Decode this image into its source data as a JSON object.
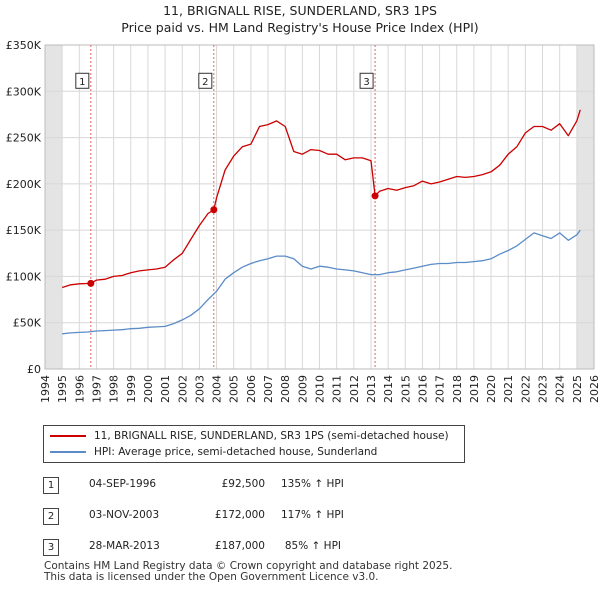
{
  "chart_data": {
    "type": "line",
    "title": "11, BRIGNALL RISE, SUNDERLAND, SR3 1PS",
    "subtitle": "Price paid vs. HM Land Registry's House Price Index (HPI)",
    "xlabel": "",
    "ylabel": "",
    "xlim": [
      1994,
      2026
    ],
    "ylim": [
      0,
      350000
    ],
    "y_ticks": [
      0,
      50000,
      100000,
      150000,
      200000,
      250000,
      300000,
      350000
    ],
    "y_tick_labels": [
      "£0",
      "£50K",
      "£100K",
      "£150K",
      "£200K",
      "£250K",
      "£300K",
      "£350K"
    ],
    "x_ticks": [
      1994,
      1995,
      1996,
      1997,
      1998,
      1999,
      2000,
      2001,
      2002,
      2003,
      2004,
      2005,
      2006,
      2007,
      2008,
      2009,
      2010,
      2011,
      2012,
      2013,
      2014,
      2015,
      2016,
      2017,
      2018,
      2019,
      2020,
      2021,
      2022,
      2023,
      2024,
      2025,
      2026
    ],
    "x_tick_labels": [
      "1994",
      "1995",
      "1996",
      "1997",
      "1998",
      "1999",
      "2000",
      "2001",
      "2002",
      "2003",
      "2004",
      "2005",
      "2006",
      "2007",
      "2008",
      "2009",
      "2010",
      "2011",
      "2012",
      "2013",
      "2014",
      "2015",
      "2016",
      "2017",
      "2018",
      "2019",
      "2020",
      "2021",
      "2022",
      "2023",
      "2024",
      "2025",
      "2026"
    ],
    "grid": true,
    "shaded_ranges": [
      [
        1994.0,
        1995.0
      ],
      [
        2025.0,
        2026.0
      ]
    ],
    "series": [
      {
        "name": "11, BRIGNALL RISE, SUNDERLAND, SR3 1PS (semi-detached house)",
        "color": "#cc0000",
        "x": [
          1995.0,
          1995.5,
          1996.0,
          1996.67,
          1997.0,
          1997.5,
          1998.0,
          1998.5,
          1999.0,
          1999.5,
          2000.0,
          2000.5,
          2001.0,
          2001.5,
          2002.0,
          2002.5,
          2003.0,
          2003.5,
          2003.84,
          2004.0,
          2004.5,
          2005.0,
          2005.5,
          2006.0,
          2006.5,
          2007.0,
          2007.5,
          2008.0,
          2008.5,
          2009.0,
          2009.5,
          2010.0,
          2010.5,
          2011.0,
          2011.5,
          2012.0,
          2012.5,
          2013.0,
          2013.24,
          2013.5,
          2014.0,
          2014.5,
          2015.0,
          2015.5,
          2016.0,
          2016.5,
          2017.0,
          2017.5,
          2018.0,
          2018.5,
          2019.0,
          2019.5,
          2020.0,
          2020.5,
          2021.0,
          2021.5,
          2022.0,
          2022.5,
          2023.0,
          2023.5,
          2024.0,
          2024.5,
          2025.0,
          2025.2
        ],
        "y": [
          88000,
          91000,
          92000,
          92500,
          96000,
          97000,
          100000,
          101000,
          104000,
          106000,
          107000,
          108000,
          110000,
          118000,
          125000,
          140000,
          155000,
          168000,
          172000,
          185000,
          215000,
          230000,
          240000,
          243000,
          262000,
          264000,
          268000,
          262000,
          235000,
          232000,
          237000,
          236000,
          232000,
          232000,
          226000,
          228000,
          228000,
          225000,
          187000,
          192000,
          195000,
          193000,
          196000,
          198000,
          203000,
          200000,
          202000,
          205000,
          208000,
          207000,
          208000,
          210000,
          213000,
          220000,
          232000,
          240000,
          255000,
          262000,
          262000,
          258000,
          265000,
          252000,
          268000,
          280000
        ]
      },
      {
        "name": "HPI: Average price, semi-detached house, Sunderland",
        "color": "#5b8cc8",
        "x": [
          1995.0,
          1995.5,
          1996.0,
          1996.5,
          1997.0,
          1997.5,
          1998.0,
          1998.5,
          1999.0,
          1999.5,
          2000.0,
          2000.5,
          2001.0,
          2001.5,
          2002.0,
          2002.5,
          2003.0,
          2003.5,
          2004.0,
          2004.5,
          2005.0,
          2005.5,
          2006.0,
          2006.5,
          2007.0,
          2007.5,
          2008.0,
          2008.5,
          2009.0,
          2009.5,
          2010.0,
          2010.5,
          2011.0,
          2011.5,
          2012.0,
          2012.5,
          2013.0,
          2013.5,
          2014.0,
          2014.5,
          2015.0,
          2015.5,
          2016.0,
          2016.5,
          2017.0,
          2017.5,
          2018.0,
          2018.5,
          2019.0,
          2019.5,
          2020.0,
          2020.5,
          2021.0,
          2021.5,
          2022.0,
          2022.5,
          2023.0,
          2023.5,
          2024.0,
          2024.5,
          2025.0,
          2025.2
        ],
        "y": [
          38000,
          39000,
          39500,
          40000,
          41000,
          41500,
          42000,
          42500,
          43500,
          44000,
          45000,
          45500,
          46000,
          49000,
          53000,
          58000,
          65000,
          75000,
          84000,
          97000,
          104000,
          110000,
          114000,
          117000,
          119000,
          122000,
          122000,
          119000,
          111000,
          108000,
          111000,
          110000,
          108000,
          107000,
          106000,
          104000,
          102000,
          102000,
          104000,
          105000,
          107000,
          109000,
          111000,
          113000,
          114000,
          114000,
          115000,
          115000,
          116000,
          117000,
          119000,
          124000,
          128000,
          133000,
          140000,
          147000,
          144000,
          141000,
          147000,
          139000,
          145000,
          150000
        ]
      }
    ],
    "annotations": [
      {
        "label": "1",
        "x": 1996.67,
        "y": 92500
      },
      {
        "label": "2",
        "x": 2003.84,
        "y": 172000
      },
      {
        "label": "3",
        "x": 2013.24,
        "y": 187000
      }
    ]
  },
  "legend": {
    "items": [
      {
        "label": "11, BRIGNALL RISE, SUNDERLAND, SR3 1PS (semi-detached house)",
        "color": "#cc0000"
      },
      {
        "label": "HPI: Average price, semi-detached house, Sunderland",
        "color": "#5b8cc8"
      }
    ]
  },
  "sales": [
    {
      "num": "1",
      "date": "04-SEP-1996",
      "price": "£92,500",
      "hpi": "135% ↑ HPI"
    },
    {
      "num": "2",
      "date": "03-NOV-2003",
      "price": "£172,000",
      "hpi": "117% ↑ HPI"
    },
    {
      "num": "3",
      "date": "28-MAR-2013",
      "price": "£187,000",
      "hpi": "85% ↑ HPI"
    }
  ],
  "footer": {
    "line1": "Contains HM Land Registry data © Crown copyright and database right 2025.",
    "line2": "This data is licensed under the Open Government Licence v3.0."
  }
}
